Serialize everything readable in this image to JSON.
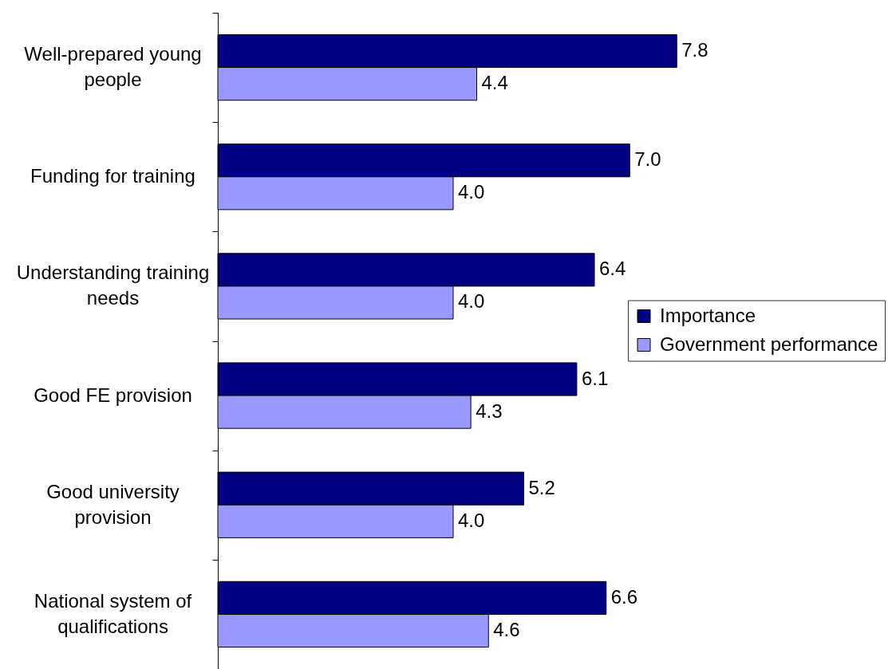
{
  "chart_data": {
    "type": "bar",
    "orientation": "horizontal",
    "categories": [
      "Well-prepared young people",
      "Funding for training",
      "Understanding training needs",
      "Good FE provision",
      "Good university provision",
      "National system of qualifications"
    ],
    "series": [
      {
        "name": "Importance",
        "color": "#000080",
        "values": [
          7.8,
          7.0,
          6.4,
          6.1,
          5.2,
          6.6
        ],
        "value_labels": [
          "7.8",
          "7.0",
          "6.4",
          "6.1",
          "5.2",
          "6.6"
        ]
      },
      {
        "name": "Government performance",
        "color": "#9999ff",
        "values": [
          4.4,
          4.0,
          4.0,
          4.3,
          4.0,
          4.6
        ],
        "value_labels": [
          "4.4",
          "4.0",
          "4.0",
          "4.3",
          "4.0",
          "4.6"
        ]
      }
    ],
    "legend": "right",
    "tick_labels": "y"
  }
}
